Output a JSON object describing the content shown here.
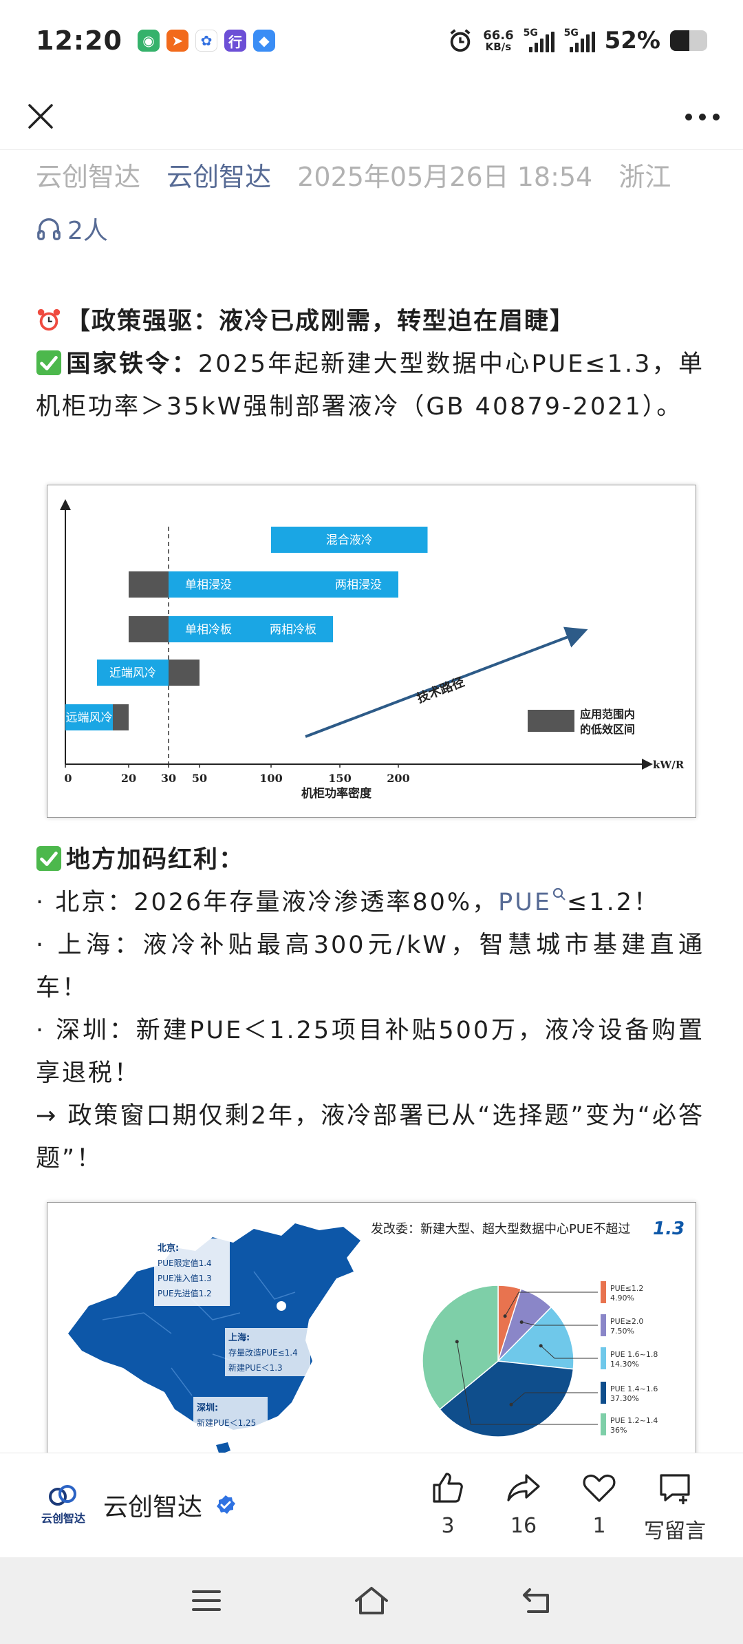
{
  "status_bar": {
    "time": "12:20",
    "net_speed_value": "66.6",
    "net_speed_unit": "KB/s",
    "signal1_label": "5G",
    "signal2_label": "5G",
    "battery_text": "52%",
    "battery_level": 0.52
  },
  "meta": {
    "source": "云创智达",
    "account": "云创智达",
    "datetime": "2025年05月26日 18:54",
    "location": "浙江",
    "listeners": "2人"
  },
  "content": {
    "policy_heading": "【政策强驱：液冷已成刚需，转型迫在眉睫】",
    "national_label": "国家铁令：",
    "national_text": "2025年起新建大型数据中心PUE≤1.3，单机柜功率＞35kW强制部署液冷（GB 40879-2021）。",
    "local_heading": "地方加码红利：",
    "beijing_prefix": "· 北京：2026年存量液冷渗透率80%，",
    "beijing_link": "PUE",
    "beijing_suffix": "≤1.2！",
    "shanghai": "· 上海：液冷补贴最高300元/kW，智慧城市基建直通车！",
    "shenzhen": "· 深圳：新建PUE＜1.25项目补贴500万，液冷设备购置享退税！",
    "conclusion": "→ 政策窗口期仅剩2年，液冷部署已从“选择题”变为“必答题”！"
  },
  "chart_data": [
    {
      "type": "bar",
      "title": "",
      "xlabel": "机柜功率密度",
      "x_unit": "kW/R",
      "x_ticks": [
        "0",
        "20",
        "30",
        "50",
        "100",
        "150",
        "200"
      ],
      "reference_line": 30,
      "bars": [
        {
          "label": "混合液冷",
          "start": 100,
          "end": 225
        },
        {
          "label_low": "单相浸没",
          "label_high": "两相浸没",
          "low_start": 20,
          "low_end": 30,
          "start": 30,
          "end": 200
        },
        {
          "label_low": "单相冷板",
          "label_high": "两相冷板",
          "low_start": 20,
          "low_end": 30,
          "start": 30,
          "end": 145
        },
        {
          "label": "近端风冷",
          "start": 10,
          "end": 30,
          "low_start": 30,
          "low_end": 50
        },
        {
          "label": "远端风冷",
          "start": 0,
          "end": 15,
          "low_start": 15,
          "low_end": 20
        }
      ],
      "arrow_label": "技术路径",
      "legend_label": "应用范围内的低效区间",
      "colors": {
        "cyan": "#1aa6e4",
        "dark": "#555555",
        "arrow": "#2d5b88"
      }
    },
    {
      "type": "pie",
      "title": "发改委：新建大型、超大型数据中心PUE不超过",
      "title_value": "1.3",
      "slices": [
        {
          "name": "PUE≤1.2",
          "value": 4.9,
          "label": "4.90%",
          "color": "#e8734f"
        },
        {
          "name": "PUE≥2.0",
          "value": 7.5,
          "label": "7.50%",
          "color": "#8a86c8"
        },
        {
          "name": "PUE 1.6~1.8",
          "value": 14.3,
          "label": "14.30%",
          "color": "#6fc8ea"
        },
        {
          "name": "PUE 1.4~1.6",
          "value": 37.3,
          "label": "37.30%",
          "color": "#0f4e8c"
        },
        {
          "name": "PUE 1.2~1.4",
          "value": 36,
          "label": "36%",
          "color": "#7ecfa8"
        }
      ],
      "map_labels": {
        "beijing_title": "北京:",
        "beijing_l1": "PUE限定值1.4",
        "beijing_l2": "PUE准入值1.3",
        "beijing_l3": "PUE先进值1.2",
        "shanghai_title": "上海:",
        "shanghai_l1": "存量改造PUE≤1.4",
        "shanghai_l2": "新建PUE＜1.3",
        "shenzhen_title": "深圳:",
        "shenzhen_l1": "新建PUE＜1.25"
      }
    }
  ],
  "bottom_bar": {
    "author": "云创智达",
    "logo_text": "云创智达",
    "likes": "3",
    "shares": "16",
    "favorites": "1",
    "comment_label": "写留言"
  },
  "icons": {
    "close": "close-icon",
    "more": "more-icon",
    "headphones": "headphones-icon",
    "alarm": "alarm-clock-icon",
    "check": "check-mark-icon"
  }
}
